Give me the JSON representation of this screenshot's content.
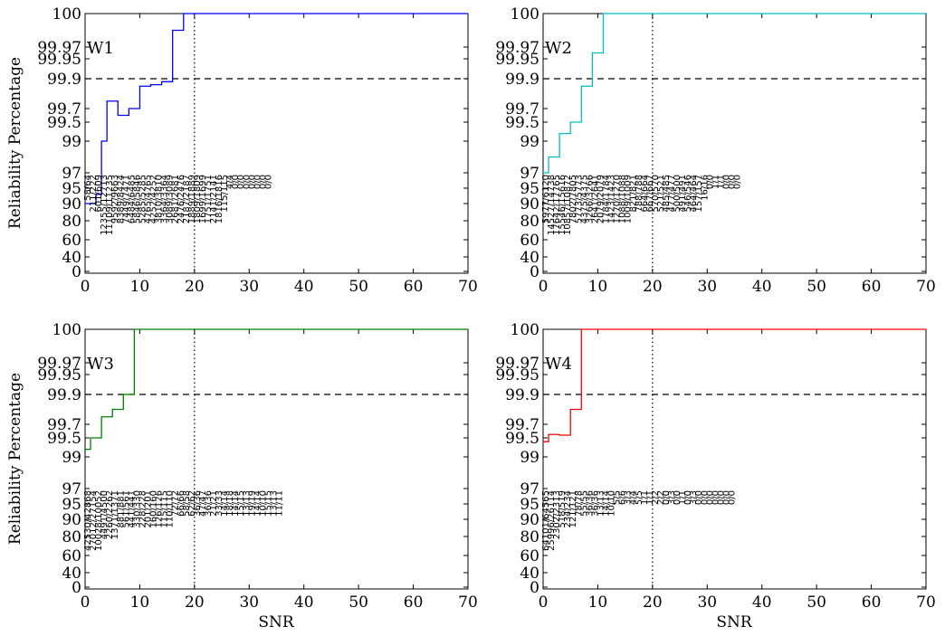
{
  "y_axis_label": "Reliability Percentage",
  "x_axis_label": "SNR",
  "chart_data": [
    {
      "type": "line",
      "step": true,
      "panel_label": "W1",
      "series": [
        {
          "color": "#0000ff",
          "x": [
            0,
            1,
            2,
            3,
            4,
            5,
            6,
            7,
            8,
            9,
            10,
            11,
            12,
            13,
            14,
            15,
            16,
            17,
            18,
            19,
            20,
            70
          ],
          "y": [
            90,
            90,
            93,
            99.0,
            99.75,
            99.75,
            99.6,
            99.6,
            99.7,
            99.7,
            99.85,
            99.85,
            99.86,
            99.86,
            99.88,
            99.88,
            99.985,
            99.985,
            100,
            100,
            100,
            100
          ]
        }
      ],
      "xlim": [
        0,
        70
      ],
      "ylim": [
        0,
        100
      ],
      "xticks": [
        0,
        10,
        20,
        30,
        40,
        50,
        60,
        70
      ],
      "yticks": [
        0,
        40,
        60,
        80,
        90,
        95,
        97,
        99,
        99.5,
        99.7,
        99.9,
        99.95,
        99.97,
        100
      ],
      "threshold_y": 99.9,
      "vline_x": 20,
      "counts": [
        "58/64",
        "211/222",
        "601/609",
        "12355/12713",
        "11109/11235",
        "9592/9663",
        "8389/8424",
        "7449/7471",
        "6484/6485",
        "5846/5846",
        "5285/5285",
        "4765/4765",
        "4252/4252",
        "3810/3810",
        "3364/3364",
        "3089/3089",
        "2681/2681",
        "2476/2476",
        "2187/2187",
        "1889/1889",
        "1809/1809",
        "1699/1699",
        "1751/1751",
        "2141/2141",
        "1816/1816",
        "115/115",
        "4/4",
        "0/0",
        "0/0",
        "0/0",
        "0/0",
        "0/0",
        "0/0",
        "0/0"
      ]
    },
    {
      "type": "line",
      "step": true,
      "panel_label": "W2",
      "series": [
        {
          "color": "#00bfbf",
          "x": [
            0,
            1,
            2,
            3,
            4,
            5,
            6,
            7,
            8,
            9,
            10,
            11,
            70
          ],
          "y": [
            97,
            98,
            98,
            99.2,
            99.2,
            99.5,
            99.5,
            99.85,
            99.85,
            99.96,
            99.96,
            100,
            100
          ]
        }
      ],
      "xlim": [
        0,
        70
      ],
      "ylim": [
        0,
        100
      ],
      "xticks": [
        0,
        10,
        20,
        30,
        40,
        50,
        60,
        70
      ],
      "yticks": [
        0,
        40,
        60,
        80,
        90,
        95,
        97,
        99,
        99.5,
        99.7,
        99.9,
        99.95,
        99.97,
        100
      ],
      "threshold_y": 99.9,
      "vline_x": 20,
      "counts": [
        "5977/6120",
        "14527/14738",
        "17642/17765",
        "15546/15616",
        "10857/10872",
        "7802/7805",
        "5773/5773",
        "4375/4375",
        "3266/3266",
        "2641/2641",
        "2079/2079",
        "1784/1784",
        "1423/1423",
        "1270/1270",
        "1088/1088",
        "1009/1009",
        "821/821",
        "788/788",
        "664/664",
        "667/667",
        "570/570",
        "521/521",
        "485/485",
        "477/477",
        "500/500",
        "491/491",
        "546/546",
        "464/464",
        "157/157",
        "16/16",
        "0/0",
        "1/1",
        "1/1",
        "0/0",
        "0/0",
        "0/0"
      ]
    },
    {
      "type": "line",
      "step": true,
      "panel_label": "W3",
      "series": [
        {
          "color": "#008000",
          "x": [
            0,
            1,
            2,
            3,
            4,
            5,
            6,
            7,
            8,
            9,
            10,
            70
          ],
          "y": [
            99.2,
            99.5,
            99.5,
            99.75,
            99.75,
            99.8,
            99.8,
            99.9,
            99.9,
            100,
            100,
            100
          ]
        }
      ],
      "xlim": [
        0,
        70
      ],
      "ylim": [
        0,
        100
      ],
      "xticks": [
        0,
        10,
        20,
        30,
        40,
        50,
        60,
        70
      ],
      "yticks": [
        0,
        40,
        60,
        80,
        90,
        95,
        97,
        99,
        99.5,
        99.7,
        99.9,
        99.95,
        99.97,
        100
      ],
      "threshold_y": 99.9,
      "vline_x": 20,
      "counts": [
        "42530/42868",
        "27012/27154",
        "10028/10052",
        "4491/4500",
        "2260/2262",
        "1371/1371",
        "881/881",
        "561/561",
        "441/441",
        "330/330",
        "228/228",
        "201/201",
        "160/160",
        "126/126",
        "115/115",
        "110/110",
        "72/72",
        "66/66",
        "58/58",
        "62/62",
        "36/36",
        "47/47",
        "36/36",
        "21/21",
        "33/33",
        "14/14",
        "18/18",
        "14/14",
        "15/15",
        "13/13",
        "19/19",
        "14/14",
        "10/10",
        "15/15",
        "13/13",
        "11/11"
      ]
    },
    {
      "type": "line",
      "step": true,
      "panel_label": "W4",
      "series": [
        {
          "color": "#ff0000",
          "x": [
            0,
            1,
            2,
            3,
            4,
            5,
            6,
            7,
            70
          ],
          "y": [
            99.4,
            99.55,
            99.55,
            99.54,
            99.54,
            99.8,
            99.8,
            100,
            100
          ]
        }
      ],
      "xlim": [
        0,
        70
      ],
      "ylim": [
        0,
        100
      ],
      "xticks": [
        0,
        10,
        20,
        30,
        40,
        50,
        60,
        70
      ],
      "yticks": [
        0,
        40,
        60,
        80,
        90,
        95,
        97,
        99,
        99.5,
        99.7,
        99.9,
        99.95,
        99.97,
        100
      ],
      "threshold_y": 99.9,
      "vline_x": 20,
      "counts": [
        "64101/64565",
        "25996/26114",
        "2302/2313",
        "518/519",
        "234/234",
        "121/121",
        "78/78",
        "55/55",
        "36/36",
        "36/36",
        "13/13",
        "14/14",
        "10/10",
        "5/5",
        "6/6",
        "3/3",
        "4/4",
        "5/5",
        "1/1",
        "1/1",
        "2/2",
        "2/2",
        "0/0",
        "3/3",
        "0/0",
        "1/1",
        "0/0",
        "3/3",
        "0/0",
        "0/0",
        "0/0",
        "0/0",
        "0/0",
        "0/0",
        "0/0"
      ]
    }
  ]
}
